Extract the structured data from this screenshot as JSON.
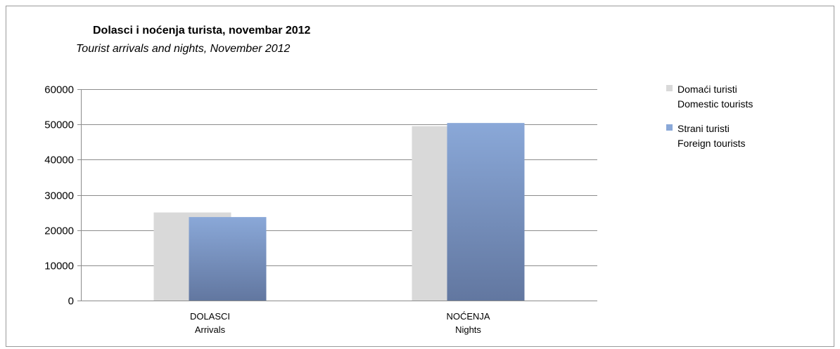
{
  "chart_data": {
    "type": "bar",
    "title": "Dolasci i noćenja turista, novembar 2012",
    "subtitle": "Tourist arrivals and nights, November 2012",
    "categories": [
      {
        "line1": "DOLASCI",
        "line2": "Arrivals"
      },
      {
        "line1": "NOĆENJA",
        "line2": "Nights"
      }
    ],
    "series": [
      {
        "name": "Domaći turisti",
        "name_en": "Domestic tourists",
        "color": "#d9d9d9",
        "values": [
          25000,
          49500
        ]
      },
      {
        "name": "Strani turisti",
        "name_en": "Foreign tourists",
        "color": "#8aa8d8",
        "color_dark": "#6277a0",
        "values": [
          23700,
          50400
        ]
      }
    ],
    "ylim": [
      0,
      60000
    ],
    "yticks": [
      0,
      10000,
      20000,
      30000,
      40000,
      50000,
      60000
    ],
    "grid": true,
    "legend_position": "right"
  }
}
